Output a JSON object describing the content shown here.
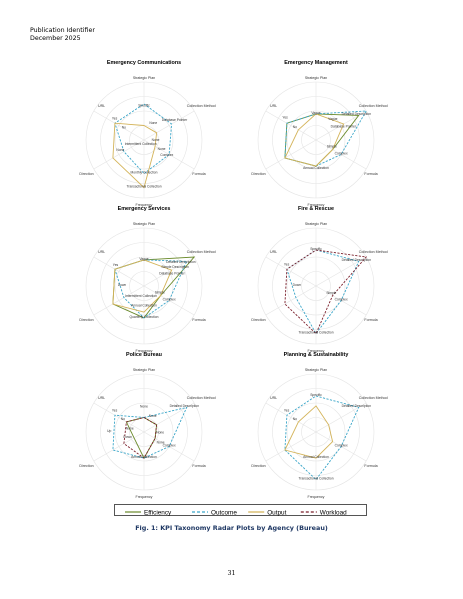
{
  "header": {
    "line1": "Publication Identifier",
    "line2": "December 2025"
  },
  "figure": {
    "caption": "Fig. 1: KPI Taxonomy Radar Plots by Agency (Bureau)",
    "page_number": "31",
    "axes": [
      "Strategic Plan",
      "Collection Method",
      "Formula",
      "Frequency",
      "Direction",
      "URL"
    ],
    "legend": [
      {
        "name": "Efficiency",
        "color": "#6a8a2a",
        "dash": "solid"
      },
      {
        "name": "Outcome",
        "color": "#3aa6c9",
        "dash": "dashed"
      },
      {
        "name": "Output",
        "color": "#d4b45a",
        "dash": "solid"
      },
      {
        "name": "Workload",
        "color": "#7a1f2b",
        "dash": "dashed"
      }
    ]
  },
  "chart_data": [
    {
      "type": "radar",
      "title": "Emergency Communications",
      "series": [
        {
          "name": "Outcome",
          "points": [
            [
              "Strategic Plan",
              "Specific"
            ],
            [
              "Collection Method",
              "Database Pointer"
            ],
            [
              "Formula",
              "Complex"
            ],
            [
              "Frequency",
              "Monthly Collection"
            ],
            [
              "Direction",
              "Intermittent Collection"
            ],
            [
              "URL",
              "Yes"
            ]
          ]
        },
        {
          "name": "Output",
          "points": [
            [
              "Strategic Plan",
              "None"
            ],
            [
              "Collection Method",
              "None"
            ],
            [
              "Formula",
              "None"
            ],
            [
              "Frequency",
              "Transactional Collection"
            ],
            [
              "Direction",
              "Up"
            ],
            [
              "URL",
              "Yes"
            ]
          ]
        }
      ],
      "labels": [
        {
          "text": "Specific",
          "r": 0.58,
          "a": 0
        },
        {
          "text": "Database Pointer",
          "r": 0.62,
          "a": 58
        },
        {
          "text": "None",
          "r": 0.32,
          "a": 30
        },
        {
          "text": "None",
          "r": 0.2,
          "a": 95
        },
        {
          "text": "None",
          "r": 0.35,
          "a": 120
        },
        {
          "text": "Complex",
          "r": 0.48,
          "a": 125
        },
        {
          "text": "Yes",
          "r": 0.62,
          "a": 305
        },
        {
          "text": "No",
          "r": 0.4,
          "a": 300
        },
        {
          "text": "None",
          "r": 0.45,
          "a": 245
        },
        {
          "text": "Intermittent Collection",
          "r": 0.1,
          "a": 215
        },
        {
          "text": "Monthly Collection",
          "r": 0.58,
          "a": 180
        },
        {
          "text": "Transactional Collection",
          "r": 0.82,
          "a": 180
        }
      ]
    },
    {
      "type": "radar",
      "title": "Emergency Management",
      "series": [
        {
          "name": "Efficiency",
          "points": [
            [
              "Strategic Plan",
              "Vague"
            ],
            [
              "Collection Method",
              "Detailed Description"
            ],
            [
              "Formula",
              "Simple"
            ],
            [
              "Frequency",
              "Annual Collection"
            ],
            [
              "Direction",
              "Up"
            ],
            [
              "URL",
              "Yes"
            ]
          ]
        },
        {
          "name": "Outcome",
          "points": [
            [
              "Strategic Plan",
              "Vague"
            ],
            [
              "Collection Method",
              "Collection Method"
            ],
            [
              "Formula",
              "Complex"
            ],
            [
              "Frequency",
              "Annual Collection"
            ],
            [
              "Direction",
              "Up"
            ],
            [
              "URL",
              "Yes"
            ]
          ]
        },
        {
          "name": "Output",
          "points": [
            [
              "Strategic Plan",
              "Vague"
            ],
            [
              "Collection Method",
              "Database Pointer"
            ],
            [
              "Formula",
              "Simple"
            ],
            [
              "Frequency",
              "Annual Collection"
            ],
            [
              "Direction",
              "Up"
            ],
            [
              "URL",
              "No"
            ]
          ]
        }
      ],
      "labels": [
        {
          "text": "Vague",
          "r": 0.45,
          "a": 0
        },
        {
          "text": "Detailed Description",
          "r": 0.82,
          "a": 58
        },
        {
          "text": "Vague",
          "r": 0.45,
          "a": 40
        },
        {
          "text": "Database Pointer",
          "r": 0.52,
          "a": 65
        },
        {
          "text": "Simple",
          "r": 0.3,
          "a": 115
        },
        {
          "text": "Complex",
          "r": 0.5,
          "a": 120
        },
        {
          "text": "Yes",
          "r": 0.65,
          "a": 305
        },
        {
          "text": "No",
          "r": 0.42,
          "a": 300
        },
        {
          "text": "Annual Collection",
          "r": 0.5,
          "a": 180
        }
      ]
    },
    {
      "type": "radar",
      "title": "Emergency Services",
      "series": [
        {
          "name": "Efficiency",
          "points": [
            [
              "Strategic Plan",
              "Vague"
            ],
            [
              "Collection Method",
              "Collection Method"
            ],
            [
              "Formula",
              "Simple"
            ],
            [
              "Frequency",
              "Quarterly Collection"
            ],
            [
              "Direction",
              "Up"
            ],
            [
              "URL",
              "Yes"
            ]
          ]
        },
        {
          "name": "Outcome",
          "points": [
            [
              "Strategic Plan",
              "Vague"
            ],
            [
              "Collection Method",
              "Detailed Description"
            ],
            [
              "Formula",
              "Complex"
            ],
            [
              "Frequency",
              "Quarterly Collection"
            ],
            [
              "Direction",
              "Down"
            ],
            [
              "URL",
              "Yes"
            ]
          ]
        },
        {
          "name": "Output",
          "points": [
            [
              "Strategic Plan",
              "Vague"
            ],
            [
              "Collection Method",
              "Database Pointer"
            ],
            [
              "Formula",
              "Simple"
            ],
            [
              "Frequency",
              "Annual Collection"
            ],
            [
              "Direction",
              "Up"
            ],
            [
              "URL",
              "Yes"
            ]
          ]
        }
      ],
      "labels": [
        {
          "text": "Vague",
          "r": 0.45,
          "a": 0
        },
        {
          "text": "Detailed Description",
          "r": 0.75,
          "a": 58
        },
        {
          "text": "Simple Description",
          "r": 0.62,
          "a": 60
        },
        {
          "text": "Database Pointer",
          "r": 0.52,
          "a": 68
        },
        {
          "text": "Simple",
          "r": 0.3,
          "a": 115
        },
        {
          "text": "Complex",
          "r": 0.5,
          "a": 120
        },
        {
          "text": "Yes",
          "r": 0.6,
          "a": 305
        },
        {
          "text": "Down",
          "r": 0.38,
          "a": 270
        },
        {
          "text": "Intermittent Collection",
          "r": 0.2,
          "a": 195
        },
        {
          "text": "Annual Collection",
          "r": 0.35,
          "a": 180
        },
        {
          "text": "Quarterly Collection",
          "r": 0.55,
          "a": 180
        }
      ]
    },
    {
      "type": "radar",
      "title": "Fire & Rescue",
      "series": [
        {
          "name": "Outcome",
          "points": [
            [
              "Strategic Plan",
              "Specific"
            ],
            [
              "Collection Method",
              "Detailed Description"
            ],
            [
              "Formula",
              "Complex"
            ],
            [
              "Frequency",
              "Transactional Collection"
            ],
            [
              "Direction",
              "Down"
            ],
            [
              "URL",
              "Yes"
            ]
          ]
        },
        {
          "name": "Workload",
          "points": [
            [
              "Strategic Plan",
              "Specific"
            ],
            [
              "Collection Method",
              "Collection Method"
            ],
            [
              "Formula",
              "Simple"
            ],
            [
              "Frequency",
              "Transactional Collection"
            ],
            [
              "Direction",
              "Up"
            ],
            [
              "URL",
              "Yes"
            ]
          ]
        }
      ],
      "labels": [
        {
          "text": "Specific",
          "r": 0.62,
          "a": 0
        },
        {
          "text": "Detailed Description",
          "r": 0.82,
          "a": 58
        },
        {
          "text": "Yes",
          "r": 0.62,
          "a": 305
        },
        {
          "text": "Down",
          "r": 0.33,
          "a": 270
        },
        {
          "text": "Simple",
          "r": 0.3,
          "a": 118
        },
        {
          "text": "Complex",
          "r": 0.5,
          "a": 120
        },
        {
          "text": "Transactional Collection",
          "r": 0.82,
          "a": 180
        }
      ]
    },
    {
      "type": "radar",
      "title": "Police Bureau",
      "series": [
        {
          "name": "Efficiency",
          "points": [
            [
              "Strategic Plan",
              "None"
            ],
            [
              "Collection Method",
              "None"
            ],
            [
              "Formula",
              "None"
            ],
            [
              "Frequency",
              "Annual Collection"
            ],
            [
              "Direction",
              "None"
            ],
            [
              "URL",
              "No"
            ]
          ]
        },
        {
          "name": "Outcome",
          "points": [
            [
              "Strategic Plan",
              "None"
            ],
            [
              "Collection Method",
              "Detailed Description"
            ],
            [
              "Formula",
              "Complex"
            ],
            [
              "Frequency",
              "Annual Collection"
            ],
            [
              "Direction",
              "Up"
            ],
            [
              "URL",
              "Yes"
            ]
          ]
        },
        {
          "name": "Workload",
          "points": [
            [
              "Strategic Plan",
              "None"
            ],
            [
              "Collection Method",
              "None"
            ],
            [
              "Formula",
              "None"
            ],
            [
              "Frequency",
              "Annual Collection"
            ],
            [
              "Direction",
              "Down"
            ],
            [
              "URL",
              "No"
            ]
          ]
        }
      ],
      "labels": [
        {
          "text": "None",
          "r": 0.42,
          "a": 0
        },
        {
          "text": "Detailed Description",
          "r": 0.82,
          "a": 58
        },
        {
          "text": "None",
          "r": 0.3,
          "a": 30
        },
        {
          "text": "None",
          "r": 0.28,
          "a": 95
        },
        {
          "text": "None",
          "r": 0.35,
          "a": 125
        },
        {
          "text": "Complex",
          "r": 0.5,
          "a": 120
        },
        {
          "text": "Yes",
          "r": 0.62,
          "a": 305
        },
        {
          "text": "No",
          "r": 0.42,
          "a": 300
        },
        {
          "text": "None",
          "r": 0.25,
          "a": 280
        },
        {
          "text": "Down",
          "r": 0.3,
          "a": 250
        },
        {
          "text": "Up",
          "r": 0.6,
          "a": 270
        },
        {
          "text": "Annual Collection",
          "r": 0.45,
          "a": 180
        }
      ]
    },
    {
      "type": "radar",
      "title": "Planning & Sustainability",
      "series": [
        {
          "name": "Outcome",
          "points": [
            [
              "Strategic Plan",
              "Specific"
            ],
            [
              "Collection Method",
              "Detailed Description"
            ],
            [
              "Formula",
              "Complex"
            ],
            [
              "Frequency",
              "Transactional Collection"
            ],
            [
              "Direction",
              "Up"
            ],
            [
              "URL",
              "Yes"
            ]
          ]
        },
        {
          "name": "Output",
          "points": [
            [
              "Strategic Plan",
              "Vague"
            ],
            [
              "Collection Method",
              "None"
            ],
            [
              "Formula",
              "Simple"
            ],
            [
              "Frequency",
              "Annual Collection"
            ],
            [
              "Direction",
              "Up"
            ],
            [
              "URL",
              "No"
            ]
          ]
        }
      ],
      "labels": [
        {
          "text": "Specific",
          "r": 0.62,
          "a": 0
        },
        {
          "text": "Detailed Description",
          "r": 0.82,
          "a": 58
        },
        {
          "text": "Yes",
          "r": 0.62,
          "a": 305
        },
        {
          "text": "No",
          "r": 0.42,
          "a": 300
        },
        {
          "text": "Complex",
          "r": 0.5,
          "a": 120
        },
        {
          "text": "Annual Collection",
          "r": 0.45,
          "a": 180
        },
        {
          "text": "Transactional Collection",
          "r": 0.82,
          "a": 180
        }
      ]
    }
  ]
}
